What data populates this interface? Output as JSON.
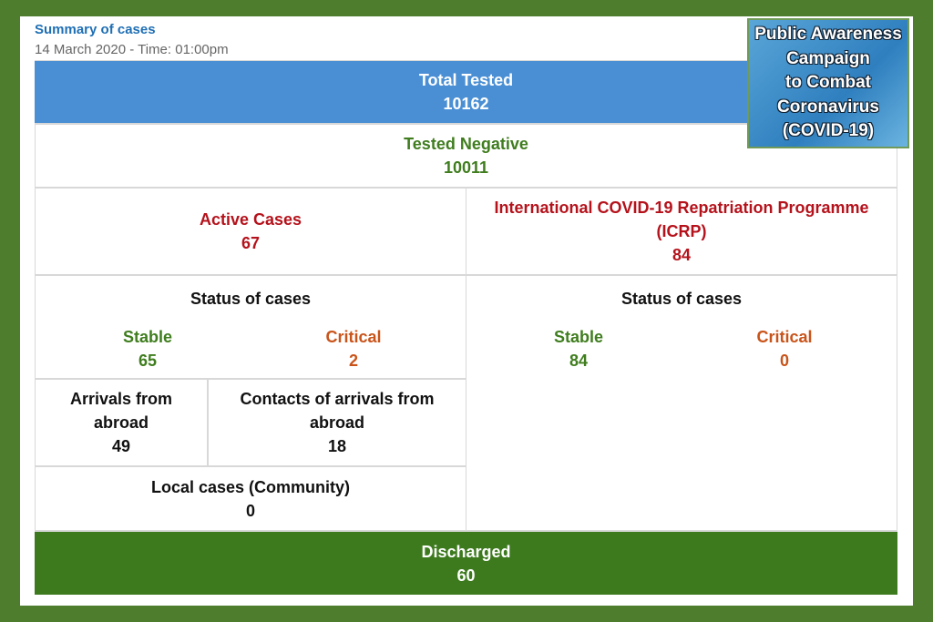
{
  "header": {
    "title": "Summary of cases",
    "date": "14 March 2020 - Time: 01:00pm"
  },
  "badge": {
    "lines": [
      "Public Awareness",
      "Campaign",
      "to Combat",
      "Coronavirus",
      "(COVID-19)"
    ]
  },
  "total_tested": {
    "label": "Total Tested",
    "value": 10162
  },
  "tested_negative": {
    "label": "Tested Negative",
    "value": 10011
  },
  "active_cases": {
    "label": "Active Cases",
    "value": 67,
    "status": {
      "title": "Status of cases",
      "stable": {
        "label": "Stable",
        "value": 65
      },
      "critical": {
        "label": "Critical",
        "value": 2
      }
    },
    "arrivals": {
      "label": "Arrivals from abroad",
      "value": 49
    },
    "contacts": {
      "label": "Contacts of arrivals from abroad",
      "value": 18
    },
    "local": {
      "label": "Local cases (Community)",
      "value": 0
    }
  },
  "icrp": {
    "label": "International COVID-19 Repatriation Programme (ICRP)",
    "value": 84,
    "status": {
      "title": "Status of cases",
      "stable": {
        "label": "Stable",
        "value": 84
      },
      "critical": {
        "label": "Critical",
        "value": 0
      }
    }
  },
  "discharged": {
    "label": "Discharged",
    "value": 60
  }
}
